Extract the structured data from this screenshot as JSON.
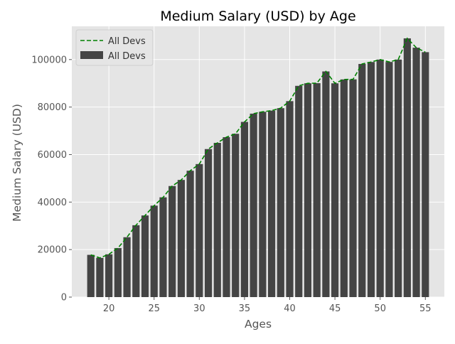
{
  "chart_data": {
    "type": "bar",
    "title": "Medium Salary (USD) by Age",
    "xlabel": "Ages",
    "ylabel": "Medium Salary (USD)",
    "xlim": [
      15.9,
      57.1
    ],
    "ylim": [
      0,
      114000
    ],
    "xticks": [
      20,
      25,
      30,
      35,
      40,
      45,
      50,
      55
    ],
    "yticks": [
      0,
      20000,
      40000,
      60000,
      80000,
      100000
    ],
    "grid": true,
    "legend_position": "top-left",
    "legend": [
      {
        "label": "All Devs",
        "kind": "dashed-line"
      },
      {
        "label": "All Devs",
        "kind": "bar"
      }
    ],
    "x": [
      18,
      19,
      20,
      21,
      22,
      23,
      24,
      25,
      26,
      27,
      28,
      29,
      30,
      31,
      32,
      33,
      34,
      35,
      36,
      37,
      38,
      39,
      40,
      41,
      42,
      43,
      44,
      45,
      46,
      47,
      48,
      49,
      50,
      51,
      52,
      53,
      54,
      55
    ],
    "series": [
      {
        "type": "bar",
        "values": [
          17784,
          16500,
          18012,
          20628,
          25206,
          30252,
          34368,
          38496,
          42000,
          46752,
          49320,
          53200,
          56000,
          62316,
          64928,
          67317,
          68748,
          73752,
          77232,
          78000,
          78508,
          79536,
          82488,
          88935,
          90000,
          90056,
          95000,
          90000,
          91633,
          91660,
          98150,
          98964,
          100000,
          98988,
          100000,
          108923,
          105000,
          103117
        ]
      },
      {
        "type": "line",
        "style": "dashed",
        "values": [
          17784,
          16500,
          18012,
          20628,
          25206,
          30252,
          34368,
          38496,
          42000,
          46752,
          49320,
          53200,
          56000,
          62316,
          64928,
          67317,
          68748,
          73752,
          77232,
          78000,
          78508,
          79536,
          82488,
          88935,
          90000,
          90056,
          95000,
          90000,
          91633,
          91660,
          98150,
          98964,
          100000,
          98988,
          100000,
          108923,
          105000,
          103117
        ]
      }
    ],
    "colors": {
      "bar": "#444444",
      "line": "#008000",
      "plot_background": "#e5e5e5",
      "grid": "#ffffff",
      "axis_text": "#555555",
      "title_text": "#000000"
    }
  }
}
